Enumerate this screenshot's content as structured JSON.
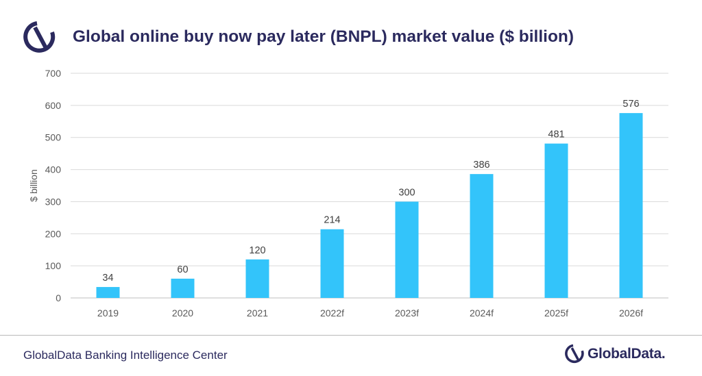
{
  "header": {
    "title": "Global online buy now pay later (BNPL) market value ($ billion)",
    "logo_icon": "globaldata-swirl-icon"
  },
  "footer": {
    "source": "GlobalData Banking Intelligence Center",
    "brand": "GlobalData."
  },
  "colors": {
    "bar": "#33c4fa",
    "title": "#2b2a5e",
    "gridline": "#d9d9d9",
    "tick_text": "#595959",
    "label_text": "#404040"
  },
  "chart_data": {
    "type": "bar",
    "title": "Global online buy now pay later (BNPL) market value ($ billion)",
    "xlabel": "",
    "ylabel": "$ billion",
    "categories": [
      "2019",
      "2020",
      "2021",
      "2022f",
      "2023f",
      "2024f",
      "2025f",
      "2026f"
    ],
    "values": [
      34,
      60,
      120,
      214,
      300,
      386,
      481,
      576
    ],
    "ylim": [
      0,
      700
    ],
    "yticks": [
      0,
      100,
      200,
      300,
      400,
      500,
      600,
      700
    ],
    "grid": true,
    "legend": "none"
  }
}
